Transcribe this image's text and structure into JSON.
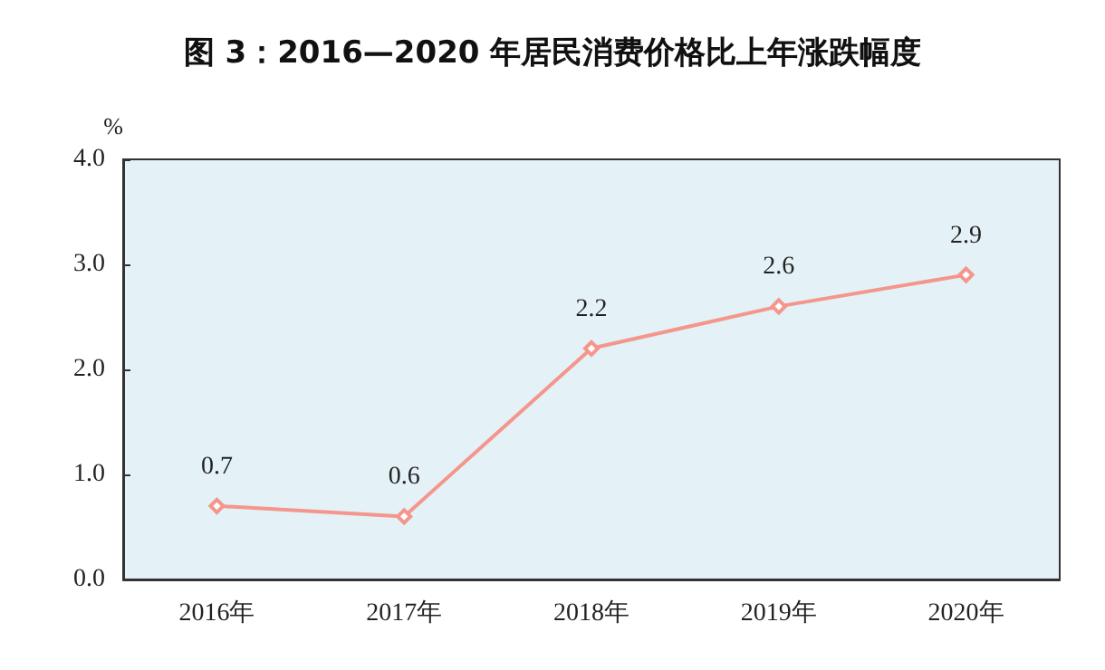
{
  "chart_data": {
    "type": "line",
    "title": "图 3：2016—2020 年居民消费价格比上年涨跌幅度",
    "ylabel": "%",
    "categories": [
      "2016年",
      "2017年",
      "2018年",
      "2019年",
      "2020年"
    ],
    "series": [
      {
        "color": "#f4968c",
        "values": [
          0.7,
          0.6,
          2.2,
          2.6,
          2.9
        ]
      }
    ],
    "ylim": [
      0,
      4
    ],
    "yticks": [
      {
        "value": 0,
        "label": "0.0"
      },
      {
        "value": 1,
        "label": "1.0"
      },
      {
        "value": 2,
        "label": "2.0"
      },
      {
        "value": 3,
        "label": "3.0"
      },
      {
        "value": 4,
        "label": "4.0"
      }
    ],
    "grid": false,
    "marker": "diamond",
    "line_style": "solid",
    "data_labels": true
  }
}
